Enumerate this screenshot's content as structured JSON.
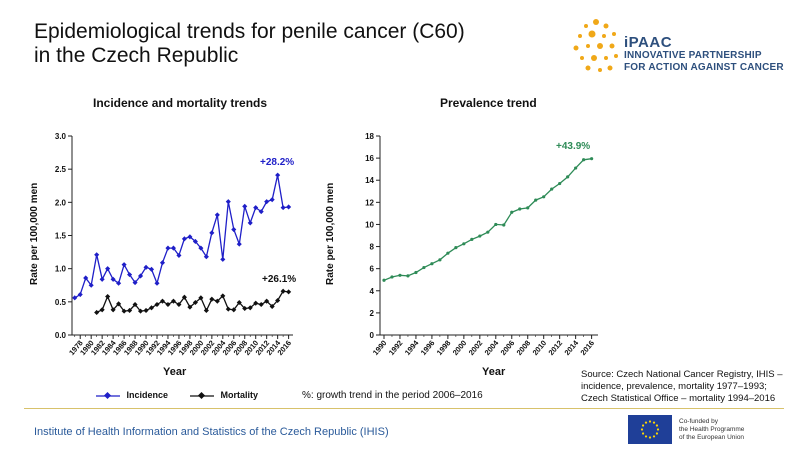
{
  "header": {
    "title": "Epidemiological trends for penile cancer (C60)\nin the Czech Republic"
  },
  "logo": {
    "word": "iPAAC",
    "line1": "INNOVATIVE PARTNERSHIP",
    "line2": "FOR ACTION AGAINST CANCER",
    "color": "#2d4f7d",
    "dot_color": "#f0a818"
  },
  "legend": {
    "incidence": "Incidence",
    "mortality": "Mortality"
  },
  "growth_note": "%: growth trend in the period 2006–2016",
  "source_note": "Source: Czech National Cancer Registry, IHIS – incidence, prevalence, mortality 1977–1993; Czech Statistical Office – mortality 1994–2016",
  "footer": {
    "institute": "Institute of Health Information and Statistics of the Czech Republic (IHIS)",
    "eu_text_1": "Co-funded by",
    "eu_text_2": "the Health Programme",
    "eu_text_3": "of the European Union"
  },
  "chart_data": [
    {
      "type": "line",
      "title": "Incidence and mortality trends",
      "xlabel": "Year",
      "ylabel": "Rate per 100,000 men",
      "ylim": [
        0,
        3.0
      ],
      "yticks": [
        "0.0",
        "0.5",
        "1.0",
        "1.5",
        "2.0",
        "2.5",
        "3.0"
      ],
      "xticks": [
        "1978",
        "1980",
        "1982",
        "1984",
        "1986",
        "1988",
        "1990",
        "1992",
        "1994",
        "1996",
        "1998",
        "2000",
        "2002",
        "2004",
        "2006",
        "2008",
        "2010",
        "2012",
        "2014",
        "2016"
      ],
      "grid": false,
      "legend": "bottom",
      "series": [
        {
          "name": "Incidence",
          "color": "#1f1fc8",
          "annotation": "+28.2%",
          "x": [
            1977,
            1978,
            1979,
            1980,
            1981,
            1982,
            1983,
            1984,
            1985,
            1986,
            1987,
            1988,
            1989,
            1990,
            1991,
            1992,
            1993,
            1994,
            1995,
            1996,
            1997,
            1998,
            1999,
            2000,
            2001,
            2002,
            2003,
            2004,
            2005,
            2006,
            2007,
            2008,
            2009,
            2010,
            2011,
            2012,
            2013,
            2014,
            2015,
            2016
          ],
          "values": [
            0.56,
            0.61,
            0.86,
            0.75,
            1.21,
            0.84,
            1.0,
            0.84,
            0.78,
            1.06,
            0.91,
            0.79,
            0.89,
            1.02,
            0.99,
            0.78,
            1.09,
            1.31,
            1.31,
            1.2,
            1.45,
            1.48,
            1.41,
            1.31,
            1.18,
            1.54,
            1.81,
            1.14,
            2.01,
            1.59,
            1.37,
            1.94,
            1.69,
            1.92,
            1.86,
            2.01,
            2.04,
            2.41,
            1.92,
            1.93
          ]
        },
        {
          "name": "Mortality",
          "color": "#111111",
          "annotation": "+26.1%",
          "x": [
            1981,
            1982,
            1983,
            1984,
            1985,
            1986,
            1987,
            1988,
            1989,
            1990,
            1991,
            1992,
            1993,
            1994,
            1995,
            1996,
            1997,
            1998,
            1999,
            2000,
            2001,
            2002,
            2003,
            2004,
            2005,
            2006,
            2007,
            2008,
            2009,
            2010,
            2011,
            2012,
            2013,
            2014,
            2015,
            2016
          ],
          "values": [
            0.34,
            0.38,
            0.58,
            0.38,
            0.47,
            0.36,
            0.37,
            0.46,
            0.36,
            0.37,
            0.41,
            0.46,
            0.51,
            0.46,
            0.51,
            0.46,
            0.57,
            0.42,
            0.49,
            0.56,
            0.37,
            0.54,
            0.51,
            0.59,
            0.39,
            0.38,
            0.49,
            0.4,
            0.41,
            0.48,
            0.46,
            0.51,
            0.43,
            0.52,
            0.66,
            0.65
          ]
        }
      ]
    },
    {
      "type": "line",
      "title": "Prevalence trend",
      "xlabel": "Year",
      "ylabel": "Rate per 100,000 men",
      "ylim": [
        0,
        18
      ],
      "yticks": [
        "0",
        "2",
        "4",
        "6",
        "8",
        "10",
        "12",
        "14",
        "16",
        "18"
      ],
      "xticks": [
        "1990",
        "1992",
        "1994",
        "1996",
        "1998",
        "2000",
        "2002",
        "2004",
        "2006",
        "2008",
        "2010",
        "2012",
        "2014",
        "2016"
      ],
      "grid": false,
      "series": [
        {
          "name": "",
          "color": "#2e8b57",
          "annotation": "+43.9%",
          "x": [
            1990,
            1991,
            1992,
            1993,
            1994,
            1995,
            1996,
            1997,
            1998,
            1999,
            2000,
            2001,
            2002,
            2003,
            2004,
            2005,
            2006,
            2007,
            2008,
            2009,
            2010,
            2011,
            2012,
            2013,
            2014,
            2015,
            2016
          ],
          "values": [
            4.95,
            5.25,
            5.4,
            5.35,
            5.65,
            6.1,
            6.45,
            6.8,
            7.4,
            7.9,
            8.25,
            8.65,
            8.95,
            9.3,
            10.0,
            9.95,
            11.1,
            11.4,
            11.5,
            12.2,
            12.5,
            13.2,
            13.7,
            14.3,
            15.1,
            15.85,
            15.95
          ]
        }
      ]
    }
  ]
}
